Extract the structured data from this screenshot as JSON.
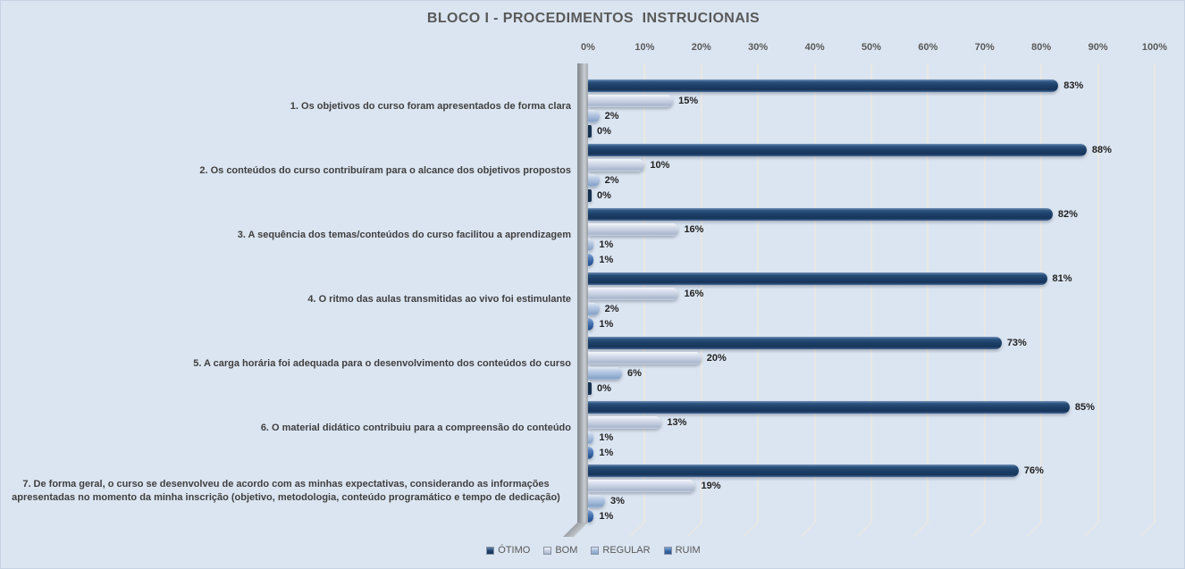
{
  "colors": {
    "background": "#DBE5F1",
    "title_text": "#595959",
    "gridline": "#E9E8E3",
    "series_otimo": "#1D4068",
    "series_bom": "#C2CCDE",
    "series_regular": "#9CB4D6",
    "series_ruim": "#33619F"
  },
  "chart_data": {
    "type": "bar",
    "orientation": "horizontal",
    "title": "BLOCO I - PROCEDIMENTOS  INSTRUCIONAIS",
    "categories": [
      "1. Os objetivos do curso foram apresentados de forma clara",
      "2. Os conteúdos do curso contribuíram para o alcance dos objetivos propostos",
      "3. A sequência dos temas/conteúdos do curso facilitou a aprendizagem",
      "4. O ritmo das aulas transmitidas ao vivo foi estimulante",
      "5. A carga horária foi adequada para o desenvolvimento dos conteúdos do curso",
      "6. O material didático contribuiu para a compreensão do conteúdo",
      "7. De forma geral, o curso se desenvolveu de acordo com as minhas expectativas, considerando as informações apresentadas no momento da minha inscrição (objetivo, metodologia, conteúdo programático e tempo de dedicação)"
    ],
    "series": [
      {
        "name": "ÓTIMO",
        "values": [
          83,
          88,
          82,
          81,
          73,
          85,
          76
        ]
      },
      {
        "name": "BOM",
        "values": [
          15,
          10,
          16,
          16,
          20,
          13,
          19
        ]
      },
      {
        "name": "REGULAR",
        "values": [
          2,
          2,
          1,
          2,
          6,
          1,
          3
        ]
      },
      {
        "name": "RUIM",
        "values": [
          0,
          0,
          1,
          1,
          0,
          1,
          1
        ]
      }
    ],
    "data_label_suffix": "%",
    "x_axis": {
      "ticks": [
        "0%",
        "10%",
        "20%",
        "30%",
        "40%",
        "50%",
        "60%",
        "70%",
        "80%",
        "90%",
        "100%"
      ],
      "min": 0,
      "max": 100
    },
    "grid": true,
    "legend_position": "bottom"
  }
}
